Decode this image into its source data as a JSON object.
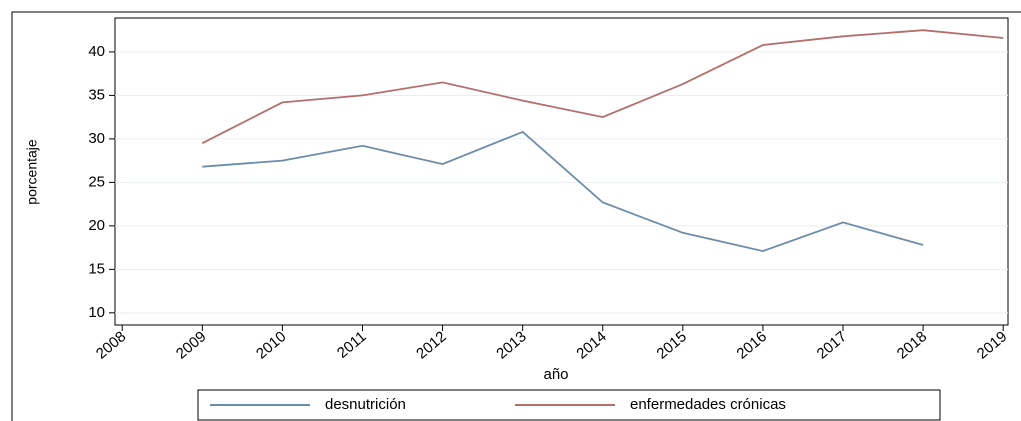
{
  "chart_data": {
    "type": "line",
    "x_label": "año",
    "y_label": "porcentaje",
    "x": [
      2009,
      2010,
      2011,
      2012,
      2013,
      2014,
      2015,
      2016,
      2017,
      2018,
      2019
    ],
    "series": [
      {
        "name": "desnutrición",
        "color": "#6c8cab",
        "values": [
          26.8,
          27.5,
          29.2,
          27.1,
          30.8,
          22.7,
          19.2,
          17.1,
          20.4,
          17.8,
          null
        ]
      },
      {
        "name": "enfermedades crónicas",
        "color": "#b56e6e",
        "values": [
          29.5,
          34.2,
          35.0,
          36.5,
          34.4,
          32.5,
          36.3,
          40.8,
          41.8,
          42.5,
          41.6
        ]
      }
    ],
    "xlim": [
      2007.91,
      2019.06
    ],
    "xticks": [
      2008,
      2009,
      2010,
      2011,
      2012,
      2013,
      2014,
      2015,
      2016,
      2017,
      2018,
      2019
    ],
    "ylim": [
      8.6,
      43.9
    ],
    "yticks": [
      10,
      15,
      20,
      25,
      30,
      35,
      40
    ],
    "grid": true,
    "legend": "bottom"
  }
}
